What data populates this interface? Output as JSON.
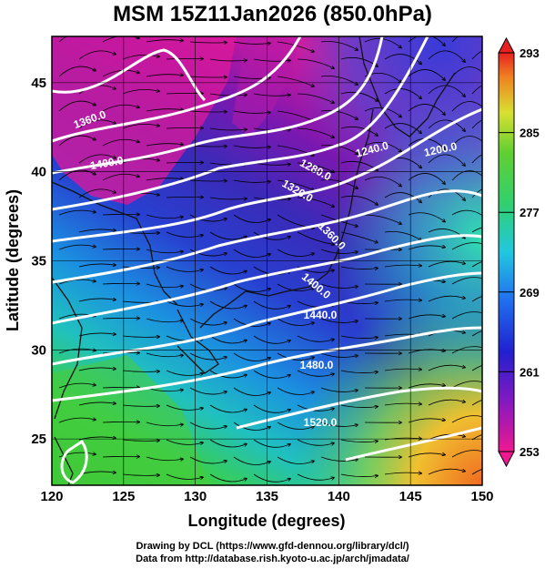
{
  "title": "MSM 15Z11Jan2026 (850.0hPa)",
  "x_axis": {
    "label": "Longitude (degrees)",
    "range": [
      120,
      150
    ],
    "ticks": [
      "120",
      "125",
      "130",
      "135",
      "140",
      "145",
      "150"
    ]
  },
  "y_axis": {
    "label": "Latitude  (degrees)",
    "range": [
      22.4,
      47.6
    ],
    "ticks": [
      "25",
      "30",
      "35",
      "40",
      "45"
    ]
  },
  "colorbar": {
    "range": [
      253,
      293
    ],
    "labels": [
      "293",
      "285",
      "277",
      "269",
      "261",
      "253"
    ]
  },
  "contours": {
    "labels": [
      "1360.0",
      "1400.0",
      "1240.0",
      "1200.0",
      "1280.0",
      "1320.0",
      "1360.0",
      "1400.0",
      "1440.0",
      "1480.0",
      "1520.0"
    ],
    "color": "#ffffff"
  },
  "colors": {
    "magenta": "#e0189a",
    "purple": "#6a1aa8",
    "blue": "#2a3fd0",
    "cyan": "#1ab5e0",
    "green": "#33cc33",
    "yellow": "#e8e030",
    "orange": "#f07820",
    "red": "#e02020"
  },
  "credits": {
    "line1": "Drawing by DCL (https://www.gfd-dennou.org/library/dcl/)",
    "line2": "Data from http://database.rish.kyoto-u.ac.jp/arch/jmadata/"
  }
}
